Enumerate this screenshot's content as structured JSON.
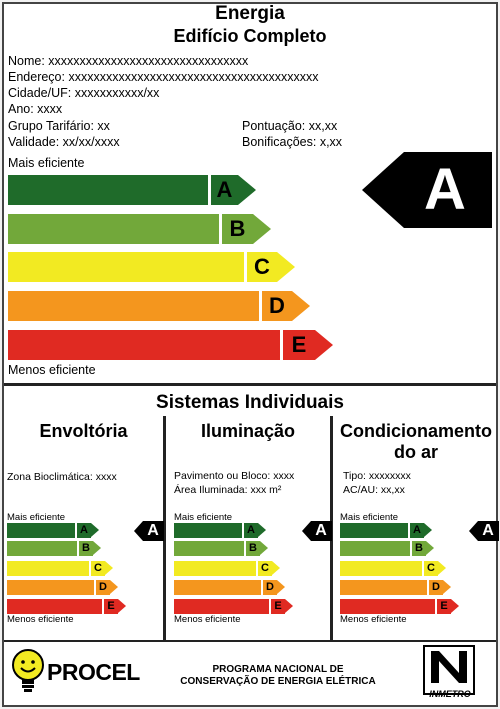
{
  "header": {
    "title": "Energia",
    "subtitle": "Edifício Completo"
  },
  "info": {
    "nome": "Nome: xxxxxxxxxxxxxxxxxxxxxxxxxxxxxxxx",
    "endereco": "Endereço: xxxxxxxxxxxxxxxxxxxxxxxxxxxxxxxxxxxxxxxx",
    "cidade": "Cidade/UF: xxxxxxxxxxx/xx",
    "ano": "Ano: xxxx",
    "grupo": "Grupo Tarifário: xx",
    "validade": "Validade: xx/xx/xxxx",
    "pontuacao": "Pontuação: xx,xx",
    "bonificacoes": "Bonificações: x,xx"
  },
  "scale": {
    "top_label": "Mais eficiente",
    "bottom_label": "Menos eficiente",
    "levels": [
      {
        "letter": "A",
        "color": "#1f6b2a"
      },
      {
        "letter": "B",
        "color": "#72a83a"
      },
      {
        "letter": "C",
        "color": "#f2ea22"
      },
      {
        "letter": "D",
        "color": "#f4961e"
      },
      {
        "letter": "E",
        "color": "#e02a22"
      }
    ],
    "rating": "A"
  },
  "systems": {
    "title": "Sistemas Individuais",
    "envoltoria": {
      "title": "Envoltória",
      "line1": "Zona Bioclimática:   xxxx",
      "top_label": "Mais eficiente",
      "bottom_label": "Menos eficiente",
      "rating": "A"
    },
    "iluminacao": {
      "title": "Iluminação",
      "line1": "Pavimento ou Bloco:  xxxx",
      "line2": "Área Iluminada:         xxx  m²",
      "top_label": "Mais eficiente",
      "bottom_label": "Menos eficiente",
      "rating": "A"
    },
    "condicionamento": {
      "title_line1": "Condicionamento",
      "title_line2": "do ar",
      "line1": "Tipo: xxxxxxxx",
      "line2": "AC/AU: xx,xx",
      "top_label": "Mais eficiente",
      "bottom_label": "Menos eficiente",
      "rating": "A"
    }
  },
  "footer": {
    "procel": "PROCEL",
    "program_line1": "PROGRAMA NACIONAL DE",
    "program_line2": "CONSERVAÇÃO DE ENERGIA ELÉTRICA",
    "inmetro": "INMETRO"
  }
}
